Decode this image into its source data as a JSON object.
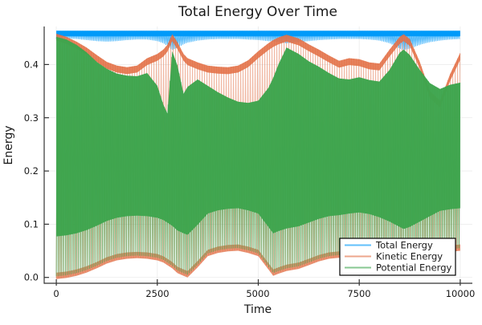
{
  "title": "Total Energy Over Time",
  "xlabel": "Time",
  "ylabel": "Energy",
  "x_axis": {
    "tick_labels": [
      "0",
      "2500",
      "5000",
      "7500",
      "10000"
    ],
    "tick_values": [
      0,
      2500,
      5000,
      7500,
      10000
    ]
  },
  "y_axis": {
    "tick_labels": [
      "0.0",
      "0.1",
      "0.2",
      "0.3",
      "0.4"
    ],
    "tick_values": [
      0.0,
      0.1,
      0.2,
      0.3,
      0.4
    ]
  },
  "colors": {
    "grid": "#ededed",
    "spine": "#333333",
    "background": "#ffffff"
  },
  "legend_position": "bottom-right",
  "chart_data": {
    "type": "line",
    "title": "Total Energy Over Time",
    "xlabel": "Time",
    "ylabel": "Energy",
    "xlim": [
      -300,
      10300
    ],
    "ylim": [
      -0.011,
      0.4715
    ],
    "grid": true,
    "legend_position": "bottom-right",
    "note": "Each series oscillates very rapidly, so the plot renders as dense vertical hatching between a lower and an upper envelope. Arrays below give the envelopes sampled at t.",
    "t": [
      0,
      250,
      500,
      750,
      1000,
      1250,
      1500,
      1750,
      2000,
      2250,
      2500,
      2650,
      2750,
      2870,
      3000,
      3150,
      3250,
      3500,
      3750,
      4000,
      4250,
      4500,
      4750,
      5000,
      5250,
      5370,
      5500,
      5700,
      6000,
      6250,
      6500,
      6750,
      7000,
      7250,
      7500,
      7750,
      8000,
      8250,
      8500,
      8600,
      8750,
      9000,
      9250,
      9500,
      9750,
      10000
    ],
    "series": [
      {
        "name": "Total Energy",
        "color": "#009af9",
        "upper_const": 0.4635,
        "lower": [
          0.448,
          0.449,
          0.448,
          0.446,
          0.444,
          0.443,
          0.444,
          0.446,
          0.447,
          0.447,
          0.444,
          0.44,
          0.435,
          0.427,
          0.432,
          0.438,
          0.441,
          0.445,
          0.447,
          0.448,
          0.448,
          0.448,
          0.447,
          0.446,
          0.444,
          0.443,
          0.442,
          0.44,
          0.442,
          0.444,
          0.446,
          0.447,
          0.448,
          0.448,
          0.448,
          0.447,
          0.445,
          0.44,
          0.43,
          0.427,
          0.43,
          0.437,
          0.442,
          0.445,
          0.447,
          0.448
        ]
      },
      {
        "name": "Kinetic Energy",
        "color": "#e26f46",
        "upper": [
          0.458,
          0.452,
          0.443,
          0.432,
          0.418,
          0.405,
          0.398,
          0.395,
          0.398,
          0.412,
          0.42,
          0.428,
          0.437,
          0.457,
          0.442,
          0.42,
          0.412,
          0.404,
          0.398,
          0.396,
          0.395,
          0.398,
          0.408,
          0.425,
          0.44,
          0.446,
          0.451,
          0.456,
          0.449,
          0.438,
          0.428,
          0.417,
          0.407,
          0.412,
          0.41,
          0.404,
          0.402,
          0.428,
          0.452,
          0.457,
          0.448,
          0.405,
          0.35,
          0.332,
          0.382,
          0.422
        ],
        "lower": [
          0.002,
          0.004,
          0.008,
          0.014,
          0.022,
          0.031,
          0.037,
          0.04,
          0.041,
          0.04,
          0.037,
          0.033,
          0.028,
          0.022,
          0.013,
          0.008,
          0.005,
          0.024,
          0.045,
          0.051,
          0.054,
          0.055,
          0.051,
          0.045,
          0.02,
          0.008,
          0.012,
          0.017,
          0.021,
          0.028,
          0.035,
          0.04,
          0.042,
          0.045,
          0.047,
          0.044,
          0.038,
          0.03,
          0.02,
          0.016,
          0.02,
          0.03,
          0.04,
          0.05,
          0.053,
          0.055
        ]
      },
      {
        "name": "Potential Energy",
        "color": "#3da44d",
        "upper": [
          0.452,
          0.447,
          0.437,
          0.423,
          0.405,
          0.392,
          0.383,
          0.379,
          0.378,
          0.384,
          0.36,
          0.325,
          0.308,
          0.425,
          0.398,
          0.345,
          0.358,
          0.372,
          0.36,
          0.348,
          0.338,
          0.33,
          0.328,
          0.332,
          0.356,
          0.375,
          0.4,
          0.432,
          0.42,
          0.406,
          0.396,
          0.384,
          0.374,
          0.372,
          0.376,
          0.371,
          0.368,
          0.39,
          0.422,
          0.428,
          0.418,
          0.39,
          0.365,
          0.354,
          0.362,
          0.366
        ],
        "lower": [
          0.002,
          0.004,
          0.008,
          0.014,
          0.022,
          0.031,
          0.037,
          0.04,
          0.041,
          0.04,
          0.037,
          0.033,
          0.028,
          0.022,
          0.013,
          0.008,
          0.005,
          0.024,
          0.045,
          0.051,
          0.054,
          0.055,
          0.051,
          0.045,
          0.02,
          0.008,
          0.012,
          0.017,
          0.021,
          0.028,
          0.035,
          0.04,
          0.042,
          0.045,
          0.047,
          0.044,
          0.038,
          0.03,
          0.02,
          0.016,
          0.02,
          0.03,
          0.04,
          0.05,
          0.053,
          0.055
        ]
      }
    ]
  }
}
